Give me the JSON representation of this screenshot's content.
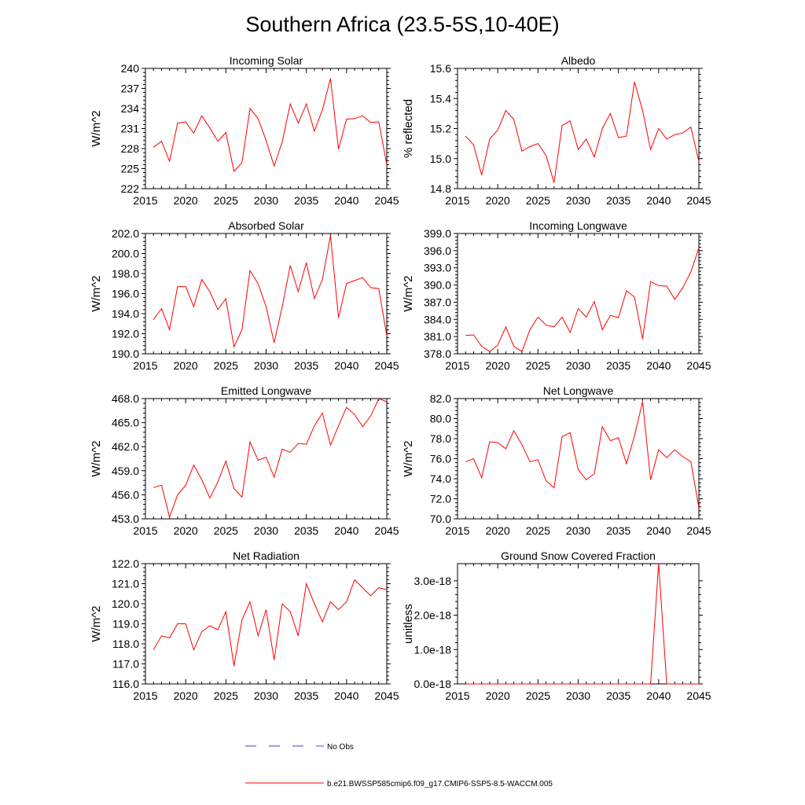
{
  "page": {
    "title": "Southern Africa (23.5-5S,10-40E)"
  },
  "legend": {
    "obs_label": "No Obs",
    "obs_color": "#3b3bd6",
    "model_label": "b.e21.BWSSP585cmip6.f09_g17.CMIP6-SSP5-8.5-WACCM.005",
    "model_color": "#ff0000"
  },
  "chart_data": [
    {
      "id": "incoming-solar",
      "type": "line",
      "title": "Incoming Solar",
      "xlabel": "",
      "ylabel": "W/m^2",
      "xlim": [
        2015,
        2045
      ],
      "ylim": [
        222,
        240
      ],
      "xticks": [
        2015,
        2020,
        2025,
        2030,
        2035,
        2040,
        2045
      ],
      "xtick_labels": [
        "2015",
        "2020",
        "2025",
        "2030",
        "2035",
        "2040",
        "2045"
      ],
      "yticks": [
        222,
        225,
        228,
        231,
        234,
        237,
        240
      ],
      "ytick_labels": [
        "222",
        "225",
        "228",
        "231",
        "234",
        "237",
        "240"
      ],
      "series": [
        {
          "name": "b.e21.BWSSP585cmip6.f09_g17.CMIP6-SSP5-8.5-WACCM.005",
          "x": [
            2016,
            2017,
            2018,
            2019,
            2020,
            2021,
            2022,
            2023,
            2024,
            2025,
            2026,
            2027,
            2028,
            2029,
            2030,
            2031,
            2032,
            2033,
            2034,
            2035,
            2036,
            2037,
            2038,
            2039,
            2040,
            2041,
            2042,
            2043,
            2044,
            2045
          ],
          "values": [
            228.2,
            229.1,
            226.1,
            231.8,
            232.0,
            230.3,
            232.9,
            231.1,
            229.1,
            230.4,
            224.6,
            225.9,
            234.0,
            232.5,
            229.2,
            225.4,
            229.0,
            234.7,
            231.8,
            234.7,
            230.6,
            233.8,
            238.5,
            227.9,
            232.4,
            232.5,
            232.9,
            231.9,
            232.0,
            225.6
          ]
        }
      ]
    },
    {
      "id": "albedo",
      "type": "line",
      "title": "Albedo",
      "xlabel": "",
      "ylabel": "% reflected",
      "xlim": [
        2015,
        2045
      ],
      "ylim": [
        14.8,
        15.6
      ],
      "xticks": [
        2015,
        2020,
        2025,
        2030,
        2035,
        2040,
        2045
      ],
      "xtick_labels": [
        "2015",
        "2020",
        "2025",
        "2030",
        "2035",
        "2040",
        "2045"
      ],
      "yticks": [
        14.8,
        15.0,
        15.2,
        15.4,
        15.6
      ],
      "ytick_labels": [
        "14.8",
        "15.0",
        "15.2",
        "15.4",
        "15.6"
      ],
      "series": [
        {
          "name": "b.e21.BWSSP585cmip6.f09_g17.CMIP6-SSP5-8.5-WACCM.005",
          "x": [
            2016,
            2017,
            2018,
            2019,
            2020,
            2021,
            2022,
            2023,
            2024,
            2025,
            2026,
            2027,
            2028,
            2029,
            2030,
            2031,
            2032,
            2033,
            2034,
            2035,
            2036,
            2037,
            2038,
            2039,
            2040,
            2041,
            2042,
            2043,
            2044,
            2045
          ],
          "values": [
            15.15,
            15.09,
            14.89,
            15.13,
            15.19,
            15.32,
            15.26,
            15.05,
            15.08,
            15.1,
            15.02,
            14.84,
            15.22,
            15.25,
            15.06,
            15.13,
            15.01,
            15.2,
            15.3,
            15.14,
            15.15,
            15.51,
            15.32,
            15.06,
            15.2,
            15.13,
            15.16,
            15.17,
            15.21,
            14.98
          ]
        }
      ]
    },
    {
      "id": "absorbed-solar",
      "type": "line",
      "title": "Absorbed Solar",
      "xlabel": "",
      "ylabel": "W/m^2",
      "xlim": [
        2015,
        2045
      ],
      "ylim": [
        190.0,
        202.0
      ],
      "xticks": [
        2015,
        2020,
        2025,
        2030,
        2035,
        2040,
        2045
      ],
      "xtick_labels": [
        "2015",
        "2020",
        "2025",
        "2030",
        "2035",
        "2040",
        "2045"
      ],
      "yticks": [
        190.0,
        192.0,
        194.0,
        196.0,
        198.0,
        200.0,
        202.0
      ],
      "ytick_labels": [
        "190.0",
        "192.0",
        "194.0",
        "196.0",
        "198.0",
        "200.0",
        "202.0"
      ],
      "series": [
        {
          "name": "b.e21.BWSSP585cmip6.f09_g17.CMIP6-SSP5-8.5-WACCM.005",
          "x": [
            2016,
            2017,
            2018,
            2019,
            2020,
            2021,
            2022,
            2023,
            2024,
            2025,
            2026,
            2027,
            2028,
            2029,
            2030,
            2031,
            2032,
            2033,
            2034,
            2035,
            2036,
            2037,
            2038,
            2039,
            2040,
            2041,
            2042,
            2043,
            2044,
            2045
          ],
          "values": [
            193.4,
            194.5,
            192.4,
            196.7,
            196.7,
            194.7,
            197.4,
            196.2,
            194.4,
            195.5,
            190.7,
            192.4,
            198.3,
            197.0,
            194.7,
            191.1,
            194.7,
            198.8,
            196.2,
            199.1,
            195.5,
            197.4,
            201.8,
            193.6,
            197.0,
            197.3,
            197.6,
            196.6,
            196.5,
            191.8
          ]
        }
      ]
    },
    {
      "id": "incoming-longwave",
      "type": "line",
      "title": "Incoming Longwave",
      "xlabel": "",
      "ylabel": "W/m^2",
      "xlim": [
        2015,
        2045
      ],
      "ylim": [
        378.0,
        399.0
      ],
      "xticks": [
        2015,
        2020,
        2025,
        2030,
        2035,
        2040,
        2045
      ],
      "xtick_labels": [
        "2015",
        "2020",
        "2025",
        "2030",
        "2035",
        "2040",
        "2045"
      ],
      "yticks": [
        378.0,
        381.0,
        384.0,
        387.0,
        390.0,
        393.0,
        396.0,
        399.0
      ],
      "ytick_labels": [
        "378.0",
        "381.0",
        "384.0",
        "387.0",
        "390.0",
        "393.0",
        "396.0",
        "399.0"
      ],
      "series": [
        {
          "name": "b.e21.BWSSP585cmip6.f09_g17.CMIP6-SSP5-8.5-WACCM.005",
          "x": [
            2016,
            2017,
            2018,
            2019,
            2020,
            2021,
            2022,
            2023,
            2024,
            2025,
            2026,
            2027,
            2028,
            2029,
            2030,
            2031,
            2032,
            2033,
            2034,
            2035,
            2036,
            2037,
            2038,
            2039,
            2040,
            2041,
            2042,
            2043,
            2044,
            2045
          ],
          "values": [
            381.2,
            381.3,
            379.3,
            378.4,
            379.5,
            382.7,
            379.3,
            378.4,
            382.2,
            384.4,
            383.0,
            382.7,
            384.4,
            381.7,
            385.9,
            384.4,
            387.1,
            382.2,
            384.7,
            384.3,
            389.0,
            387.9,
            380.6,
            390.6,
            389.9,
            389.8,
            387.5,
            389.5,
            392.3,
            396.5
          ]
        }
      ]
    },
    {
      "id": "emitted-longwave",
      "type": "line",
      "title": "Emitted Longwave",
      "xlabel": "",
      "ylabel": "W/m^2",
      "xlim": [
        2015,
        2045
      ],
      "ylim": [
        453.0,
        468.0
      ],
      "xticks": [
        2015,
        2020,
        2025,
        2030,
        2035,
        2040,
        2045
      ],
      "xtick_labels": [
        "2015",
        "2020",
        "2025",
        "2030",
        "2035",
        "2040",
        "2045"
      ],
      "yticks": [
        453.0,
        456.0,
        459.0,
        462.0,
        465.0,
        468.0
      ],
      "ytick_labels": [
        "453.0",
        "456.0",
        "459.0",
        "462.0",
        "465.0",
        "468.0"
      ],
      "series": [
        {
          "name": "b.e21.BWSSP585cmip6.f09_g17.CMIP6-SSP5-8.5-WACCM.005",
          "x": [
            2016,
            2017,
            2018,
            2019,
            2020,
            2021,
            2022,
            2023,
            2024,
            2025,
            2026,
            2027,
            2028,
            2029,
            2030,
            2031,
            2032,
            2033,
            2034,
            2035,
            2036,
            2037,
            2038,
            2039,
            2040,
            2041,
            2042,
            2043,
            2044,
            2045
          ],
          "values": [
            456.9,
            457.2,
            453.2,
            456.0,
            457.2,
            459.7,
            457.9,
            455.6,
            457.6,
            460.2,
            456.8,
            455.7,
            462.6,
            460.3,
            460.7,
            458.2,
            461.7,
            461.3,
            462.4,
            462.3,
            464.6,
            466.2,
            462.2,
            464.6,
            466.9,
            466.0,
            464.5,
            465.8,
            468.0,
            467.6
          ]
        }
      ]
    },
    {
      "id": "net-longwave",
      "type": "line",
      "title": "Net Longwave",
      "xlabel": "",
      "ylabel": "W/m^2",
      "xlim": [
        2015,
        2045
      ],
      "ylim": [
        70.0,
        82.0
      ],
      "xticks": [
        2015,
        2020,
        2025,
        2030,
        2035,
        2040,
        2045
      ],
      "xtick_labels": [
        "2015",
        "2020",
        "2025",
        "2030",
        "2035",
        "2040",
        "2045"
      ],
      "yticks": [
        70.0,
        72.0,
        74.0,
        76.0,
        78.0,
        80.0,
        82.0
      ],
      "ytick_labels": [
        "70.0",
        "72.0",
        "74.0",
        "76.0",
        "78.0",
        "80.0",
        "82.0"
      ],
      "series": [
        {
          "name": "b.e21.BWSSP585cmip6.f09_g17.CMIP6-SSP5-8.5-WACCM.005",
          "x": [
            2016,
            2017,
            2018,
            2019,
            2020,
            2021,
            2022,
            2023,
            2024,
            2025,
            2026,
            2027,
            2028,
            2029,
            2030,
            2031,
            2032,
            2033,
            2034,
            2035,
            2036,
            2037,
            2038,
            2039,
            2040,
            2041,
            2042,
            2043,
            2044,
            2045
          ],
          "values": [
            75.7,
            76.0,
            74.1,
            77.7,
            77.6,
            77.0,
            78.8,
            77.4,
            75.7,
            75.9,
            73.8,
            73.1,
            78.2,
            78.6,
            74.9,
            73.9,
            74.5,
            79.2,
            77.8,
            78.1,
            75.5,
            78.3,
            81.7,
            73.9,
            76.9,
            76.1,
            76.9,
            76.2,
            75.7,
            71.1
          ]
        }
      ]
    },
    {
      "id": "net-radiation",
      "type": "line",
      "title": "Net Radiation",
      "xlabel": "",
      "ylabel": "W/m^2",
      "xlim": [
        2015,
        2045
      ],
      "ylim": [
        116.0,
        122.0
      ],
      "xticks": [
        2015,
        2020,
        2025,
        2030,
        2035,
        2040,
        2045
      ],
      "xtick_labels": [
        "2015",
        "2020",
        "2025",
        "2030",
        "2035",
        "2040",
        "2045"
      ],
      "yticks": [
        116.0,
        117.0,
        118.0,
        119.0,
        120.0,
        121.0,
        122.0
      ],
      "ytick_labels": [
        "116.0",
        "117.0",
        "118.0",
        "119.0",
        "120.0",
        "121.0",
        "122.0"
      ],
      "series": [
        {
          "name": "b.e21.BWSSP585cmip6.f09_g17.CMIP6-SSP5-8.5-WACCM.005",
          "x": [
            2016,
            2017,
            2018,
            2019,
            2020,
            2021,
            2022,
            2023,
            2024,
            2025,
            2026,
            2027,
            2028,
            2029,
            2030,
            2031,
            2032,
            2033,
            2034,
            2035,
            2036,
            2037,
            2038,
            2039,
            2040,
            2041,
            2042,
            2043,
            2044,
            2045
          ],
          "values": [
            117.7,
            118.4,
            118.3,
            119.0,
            119.0,
            117.7,
            118.6,
            118.9,
            118.7,
            119.6,
            116.9,
            119.2,
            120.1,
            118.4,
            119.7,
            117.2,
            120.0,
            119.6,
            118.4,
            121.0,
            120.0,
            119.1,
            120.1,
            119.7,
            120.1,
            121.2,
            120.8,
            120.4,
            120.8,
            120.7
          ]
        }
      ]
    },
    {
      "id": "ground-snow-covered-fraction",
      "type": "line",
      "title": "Ground Snow Covered Fraction",
      "xlabel": "",
      "ylabel": "unitless",
      "xlim": [
        2015,
        2045
      ],
      "ylim": [
        0,
        3.5e-18
      ],
      "xticks": [
        2015,
        2020,
        2025,
        2030,
        2035,
        2040,
        2045
      ],
      "xtick_labels": [
        "2015",
        "2020",
        "2025",
        "2030",
        "2035",
        "2040",
        "2045"
      ],
      "yticks": [
        0,
        1e-18,
        2e-18,
        3e-18
      ],
      "ytick_labels": [
        "0.0e-18",
        "1.0e-18",
        "2.0e-18",
        "3.0e-18"
      ],
      "series": [
        {
          "name": "b.e21.BWSSP585cmip6.f09_g17.CMIP6-SSP5-8.5-WACCM.005",
          "x": [
            2016,
            2017,
            2018,
            2019,
            2020,
            2021,
            2022,
            2023,
            2024,
            2025,
            2026,
            2027,
            2028,
            2029,
            2030,
            2031,
            2032,
            2033,
            2034,
            2035,
            2036,
            2037,
            2038,
            2039,
            2040,
            2041,
            2042,
            2043,
            2044,
            2045
          ],
          "values": [
            0,
            0,
            0,
            0,
            0,
            0,
            0,
            0,
            0,
            0,
            0,
            0,
            0,
            0,
            0,
            0,
            0,
            0,
            0,
            0,
            0,
            0,
            0,
            0,
            3.5e-18,
            0,
            0,
            0,
            0,
            0
          ]
        }
      ]
    }
  ]
}
